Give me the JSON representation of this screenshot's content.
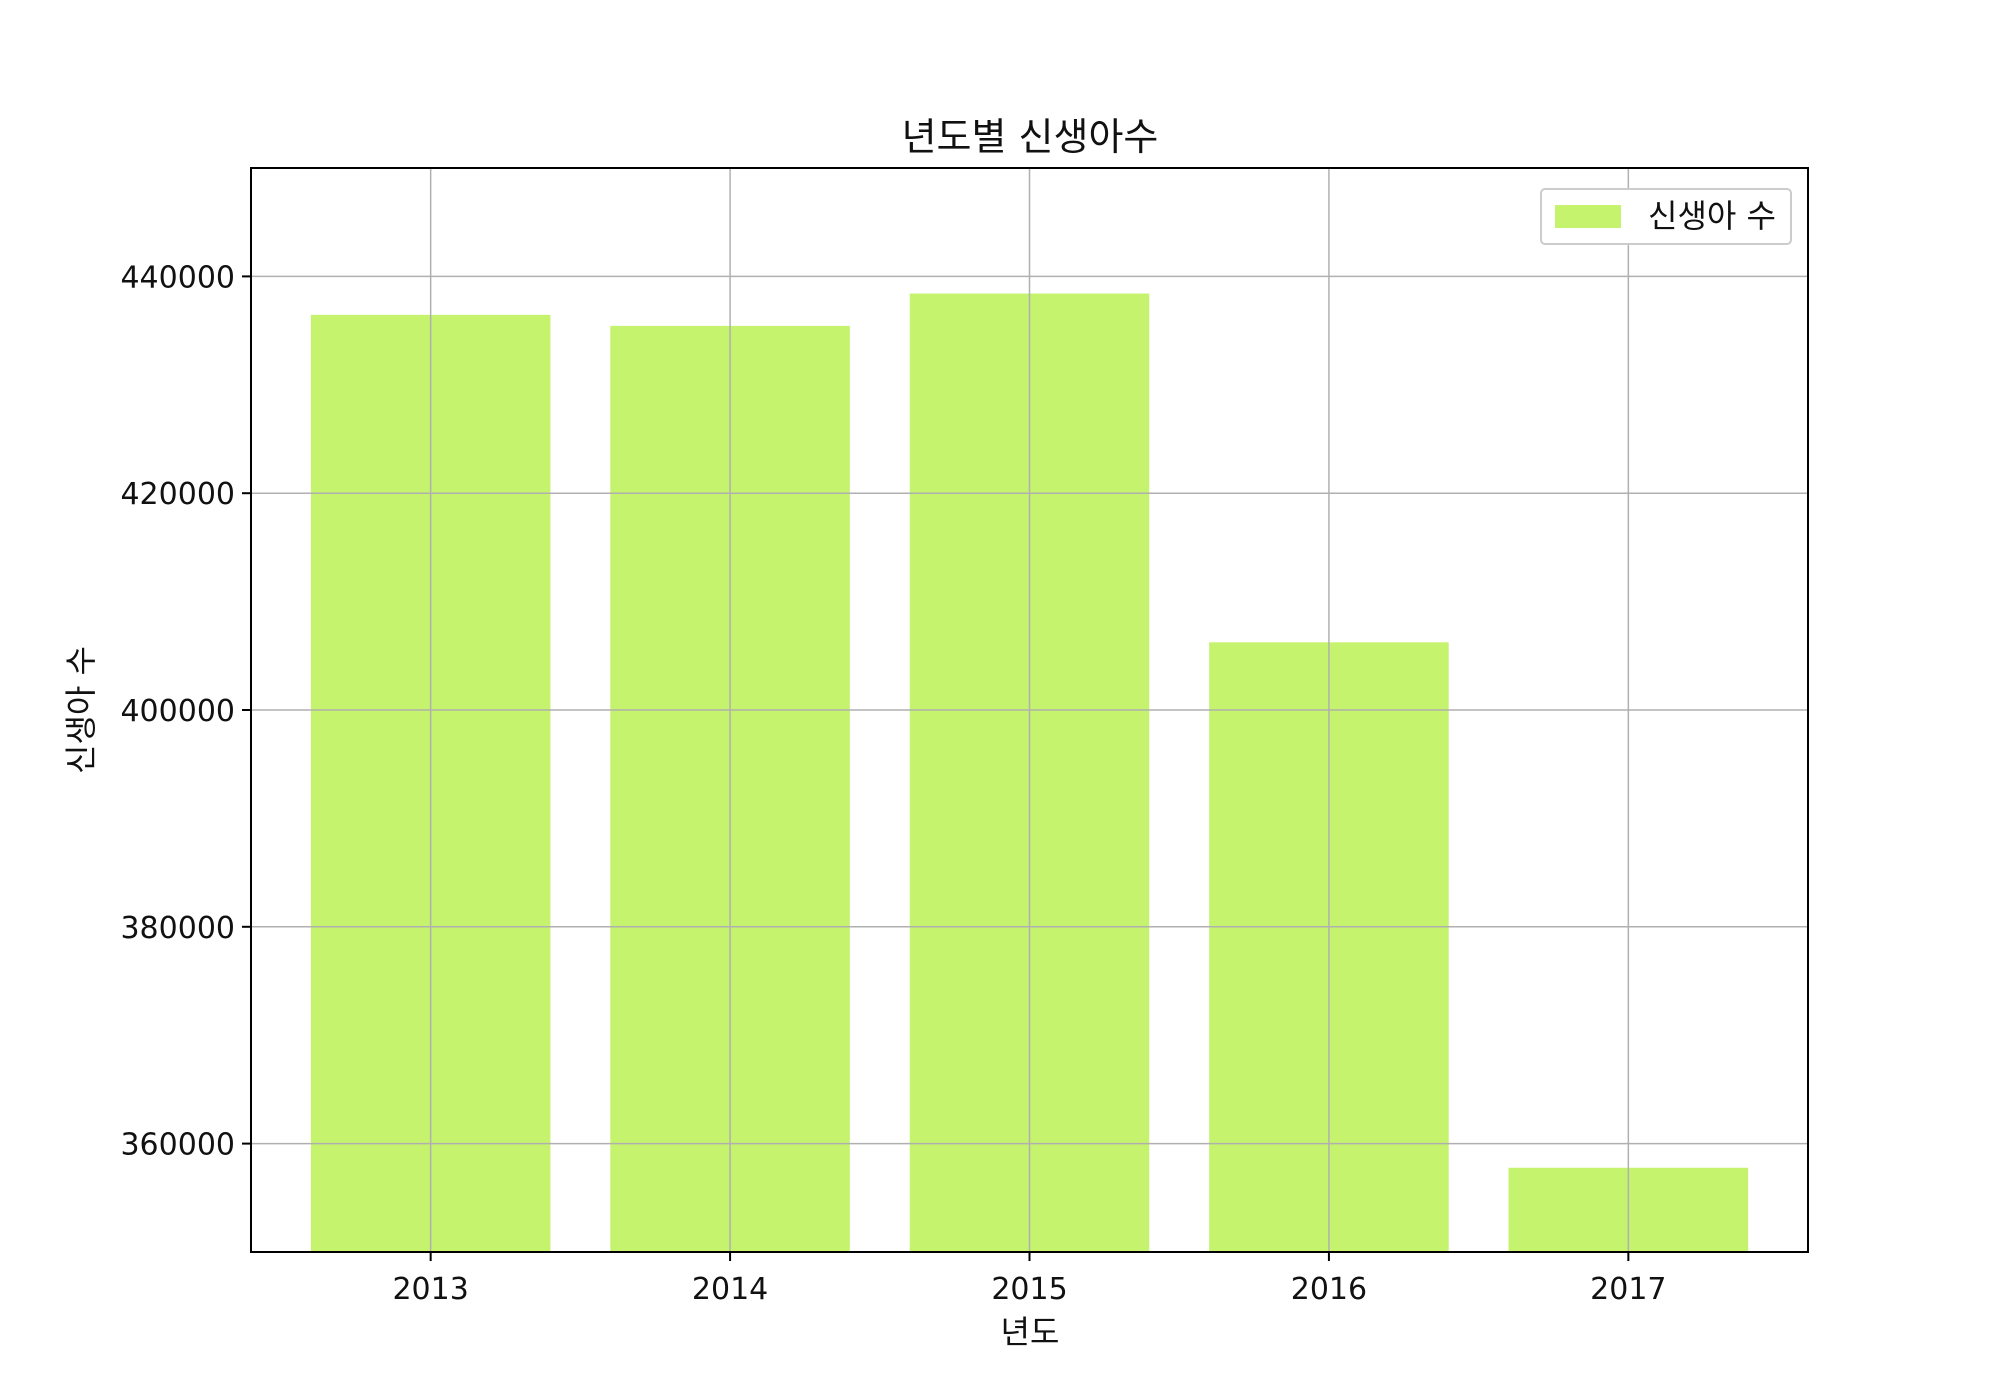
{
  "chart_data": {
    "type": "bar",
    "title": "년도별 신생아수",
    "xlabel": "년도",
    "ylabel": "신생아 수",
    "categories": [
      "2013",
      "2014",
      "2015",
      "2016",
      "2017"
    ],
    "series": [
      {
        "name": "신생아 수",
        "values": [
          436455,
          435435,
          438420,
          406243,
          357771
        ]
      }
    ],
    "ylim": [
      350000,
      450000
    ],
    "yticks": [
      360000,
      380000,
      400000,
      420000,
      440000
    ],
    "ytick_labels": [
      "360000",
      "380000",
      "400000",
      "420000",
      "440000"
    ],
    "grid": true,
    "legend_position": "top-right",
    "bar_color": "#c5f36d"
  }
}
